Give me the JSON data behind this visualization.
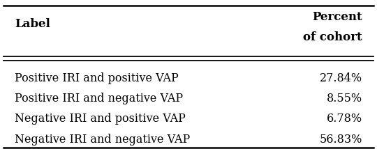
{
  "col1_header": "Label",
  "col2_header_line1": "Percent",
  "col2_header_line2": "of cohort",
  "rows": [
    [
      "Positive IRI and positive VAP",
      "27.84%"
    ],
    [
      "Positive IRI and negative VAP",
      "8.55%"
    ],
    [
      "Negative IRI and positive VAP",
      "6.78%"
    ],
    [
      "Negative IRI and negative VAP",
      "56.83%"
    ]
  ],
  "bg_color": "#ffffff",
  "text_color": "#000000",
  "header_fontsize": 12,
  "cell_fontsize": 11.5,
  "fig_width": 5.4,
  "fig_height": 2.14
}
